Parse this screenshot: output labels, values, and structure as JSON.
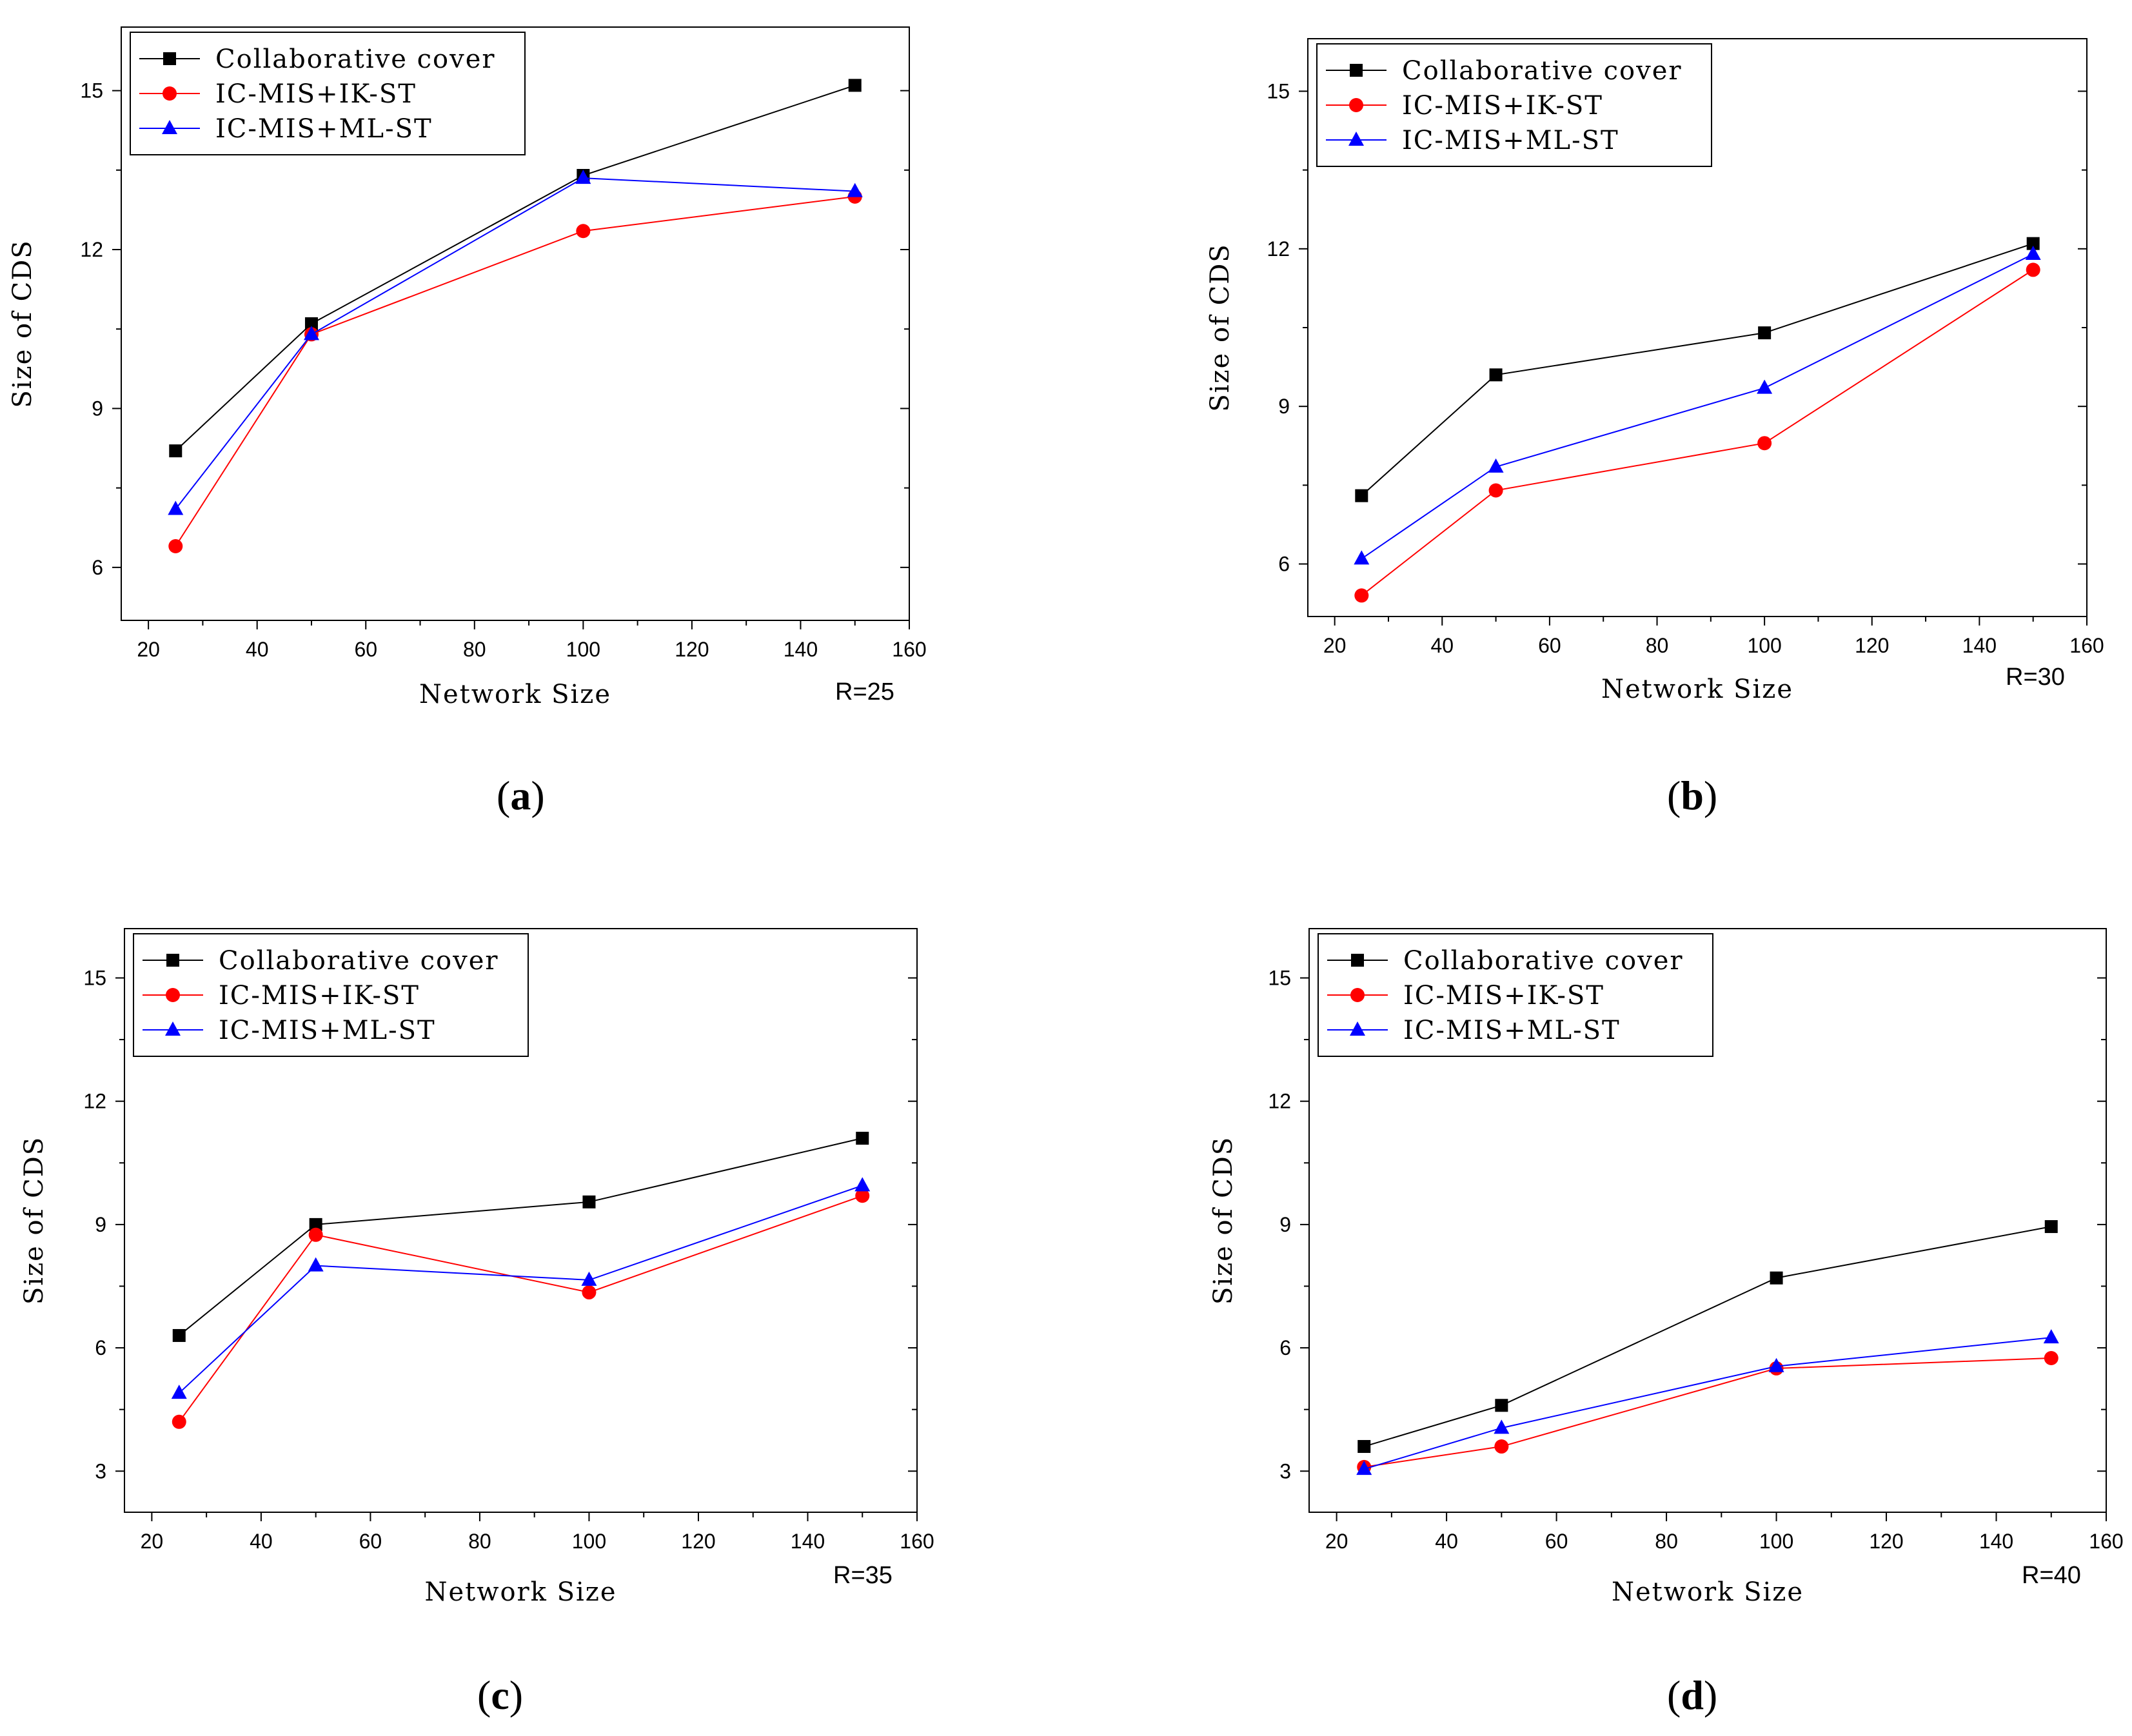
{
  "series_styles": [
    {
      "name": "Collaborative cover",
      "color": "#000000",
      "marker": "square"
    },
    {
      "name": "IC-MIS+IK-ST",
      "color": "#ff0000",
      "marker": "circle"
    },
    {
      "name": "IC-MIS+ML-ST",
      "color": "#0000ff",
      "marker": "triangle"
    }
  ],
  "chart_data": [
    {
      "type": "line",
      "panel": "a",
      "panel_open": "(",
      "panel_letter": "a",
      "panel_close": ")",
      "r_label": "R=25",
      "xlabel": "Network Size",
      "ylabel": "Size of CDS",
      "xlim": [
        15,
        160
      ],
      "ylim": [
        5,
        16.2
      ],
      "xticks": [
        20,
        40,
        60,
        80,
        100,
        120,
        140,
        160
      ],
      "yticks": [
        6,
        9,
        12,
        15
      ],
      "x": [
        25,
        50,
        100,
        150
      ],
      "series": [
        {
          "name": "Collaborative cover",
          "values": [
            8.2,
            10.6,
            13.4,
            15.1
          ]
        },
        {
          "name": "IC-MIS+IK-ST",
          "values": [
            6.4,
            10.4,
            12.35,
            13.0
          ]
        },
        {
          "name": "IC-MIS+ML-ST",
          "values": [
            7.1,
            10.4,
            13.35,
            13.1
          ]
        }
      ]
    },
    {
      "type": "line",
      "panel": "b",
      "panel_open": "(",
      "panel_letter": "b",
      "panel_close": ")",
      "r_label": "R=30",
      "xlabel": "Network Size",
      "ylabel": "Size of CDS",
      "xlim": [
        15,
        160
      ],
      "ylim": [
        5,
        16
      ],
      "xticks": [
        20,
        40,
        60,
        80,
        100,
        120,
        140,
        160
      ],
      "yticks": [
        6,
        9,
        12,
        15
      ],
      "x": [
        25,
        50,
        100,
        150
      ],
      "series": [
        {
          "name": "Collaborative cover",
          "values": [
            7.3,
            9.6,
            10.4,
            12.1
          ]
        },
        {
          "name": "IC-MIS+IK-ST",
          "values": [
            5.4,
            7.4,
            8.3,
            11.6
          ]
        },
        {
          "name": "IC-MIS+ML-ST",
          "values": [
            6.1,
            7.85,
            9.35,
            11.9
          ]
        }
      ]
    },
    {
      "type": "line",
      "panel": "c",
      "panel_open": "(",
      "panel_letter": "c",
      "panel_close": ")",
      "r_label": "R=35",
      "xlabel": "Network Size",
      "ylabel": "Size of CDS",
      "xlim": [
        15,
        160
      ],
      "ylim": [
        2,
        16.2
      ],
      "xticks": [
        20,
        40,
        60,
        80,
        100,
        120,
        140,
        160
      ],
      "yticks": [
        3,
        6,
        9,
        12,
        15
      ],
      "x": [
        25,
        50,
        100,
        150
      ],
      "series": [
        {
          "name": "Collaborative cover",
          "values": [
            6.3,
            9.0,
            9.55,
            11.1
          ]
        },
        {
          "name": "IC-MIS+IK-ST",
          "values": [
            4.2,
            8.75,
            7.35,
            9.7
          ]
        },
        {
          "name": "IC-MIS+ML-ST",
          "values": [
            4.9,
            8.0,
            7.65,
            9.95
          ]
        }
      ]
    },
    {
      "type": "line",
      "panel": "d",
      "panel_open": "(",
      "panel_letter": "d",
      "panel_close": ")",
      "r_label": "R=40",
      "xlabel": "Network Size",
      "ylabel": "Size of CDS",
      "xlim": [
        15,
        160
      ],
      "ylim": [
        2,
        16.2
      ],
      "xticks": [
        20,
        40,
        60,
        80,
        100,
        120,
        140,
        160
      ],
      "yticks": [
        3,
        6,
        9,
        12,
        15
      ],
      "x": [
        25,
        50,
        100,
        150
      ],
      "series": [
        {
          "name": "Collaborative cover",
          "values": [
            3.6,
            4.6,
            7.7,
            8.95
          ]
        },
        {
          "name": "IC-MIS+IK-ST",
          "values": [
            3.1,
            3.6,
            5.5,
            5.75
          ]
        },
        {
          "name": "IC-MIS+ML-ST",
          "values": [
            3.05,
            4.05,
            5.55,
            6.25
          ]
        }
      ]
    }
  ]
}
